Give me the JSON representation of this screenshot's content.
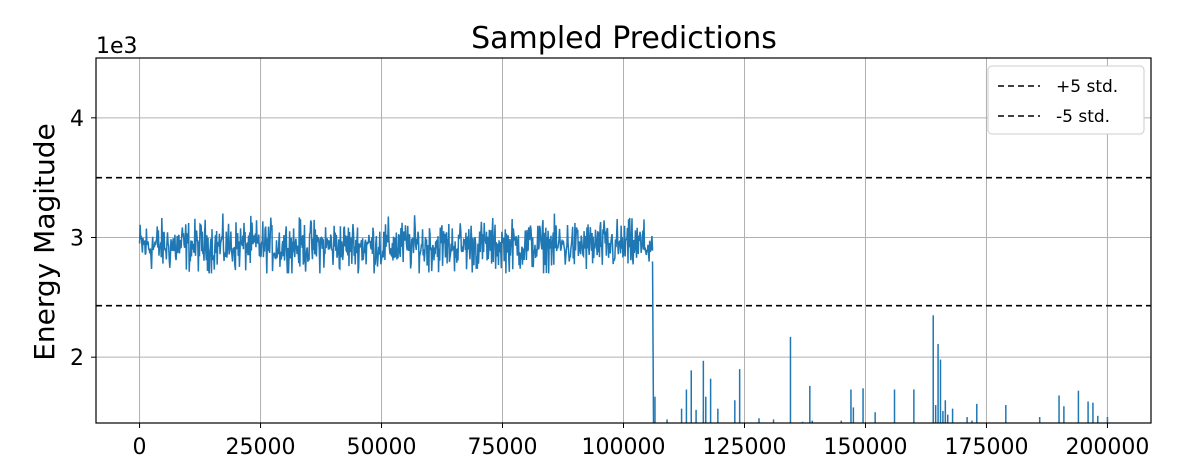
{
  "chart_data": {
    "type": "line",
    "title": "Sampled Predictions",
    "xlabel": "",
    "ylabel": "Energy Magitude",
    "y_offset_label": "1e3",
    "xlim": [
      -9000,
      209000
    ],
    "ylim": [
      1.45,
      4.5
    ],
    "y_scale_multiplier": 1000,
    "x_ticks": [
      0,
      25000,
      50000,
      75000,
      100000,
      125000,
      150000,
      175000,
      200000
    ],
    "x_tick_labels": [
      "0",
      "25000",
      "50000",
      "75000",
      "100000",
      "125000",
      "150000",
      "175000",
      "200000"
    ],
    "y_ticks": [
      2,
      3,
      4
    ],
    "y_tick_labels": [
      "2",
      "3",
      "4"
    ],
    "grid": true,
    "legend_position": "top-right",
    "colors": {
      "series": "#1f77b4",
      "threshold": "#000000",
      "grid": "#b0b0b0"
    },
    "thresholds": [
      {
        "name": "+5 std.",
        "value": 3.5
      },
      {
        "name": "-5 std.",
        "value": 2.43
      }
    ],
    "series": [
      {
        "name": "",
        "style": "noisy band",
        "x_range": [
          0,
          106000
        ],
        "mean": 2.93,
        "band": [
          2.7,
          3.2
        ]
      },
      {
        "name": "",
        "style": "drop",
        "x": [
          106000,
          106200
        ],
        "y": [
          2.8,
          1.45
        ]
      },
      {
        "name": "",
        "style": "spikes",
        "baseline": 1.45,
        "x": [
          106500,
          109000,
          112000,
          113000,
          114000,
          115000,
          116500,
          117000,
          118000,
          119500,
          123000,
          124000,
          128000,
          131000,
          134500,
          137000,
          138500,
          139000,
          145000,
          147000,
          147500,
          149500,
          152000,
          156000,
          160000,
          164000,
          164500,
          165000,
          165500,
          166000,
          166500,
          167000,
          168000,
          171000,
          172000,
          173000,
          179000,
          186000,
          190000,
          191000,
          194000,
          196000,
          197000,
          198000,
          200000
        ],
        "y": [
          1.67,
          1.48,
          1.57,
          1.73,
          1.89,
          1.56,
          1.97,
          1.67,
          1.82,
          1.57,
          1.64,
          1.9,
          1.49,
          1.48,
          2.17,
          1.46,
          1.76,
          1.47,
          1.47,
          1.73,
          1.58,
          1.74,
          1.54,
          1.73,
          1.73,
          2.35,
          1.6,
          2.11,
          1.98,
          1.55,
          1.64,
          1.52,
          1.57,
          1.5,
          1.47,
          1.61,
          1.6,
          1.5,
          1.68,
          1.59,
          1.72,
          1.63,
          1.62,
          1.51,
          1.5
        ]
      }
    ]
  }
}
